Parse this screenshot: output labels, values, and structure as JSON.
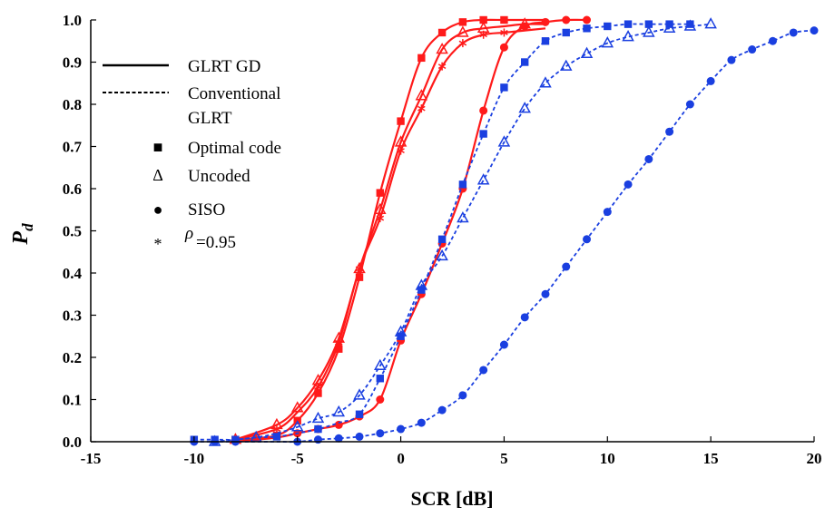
{
  "chart_data": {
    "type": "line",
    "xlabel": "SCR  [dB]",
    "ylabel_main": "P",
    "ylabel_sub": "d",
    "xlim": [
      -15,
      20
    ],
    "ylim": [
      0,
      1.0
    ],
    "xticks": [
      -15,
      -10,
      -5,
      0,
      5,
      10,
      15,
      20
    ],
    "yticks": [
      0.0,
      0.1,
      0.2,
      0.3,
      0.4,
      0.5,
      0.6,
      0.7,
      0.8,
      0.9,
      1.0
    ],
    "xtick_labels": [
      "-15",
      "-10",
      "-5",
      "0",
      "5",
      "10",
      "15",
      "20"
    ],
    "ytick_labels": [
      "0.0",
      "0.1",
      "0.2",
      "0.3",
      "0.4",
      "0.5",
      "0.6",
      "0.7",
      "0.8",
      "0.9",
      "1.0"
    ],
    "grid": false,
    "legend_position": "top-left",
    "colors": {
      "glrt_gd": "#ff1a1a",
      "conventional": "#1a3fe0",
      "axes": "#000000"
    },
    "legend": {
      "lines": [
        {
          "label": "GLRT GD",
          "style": "solid"
        },
        {
          "label": "Conventional",
          "label2": "GLRT",
          "style": "dashed"
        }
      ],
      "markers": [
        {
          "symbol": "■",
          "label": "Optimal code"
        },
        {
          "symbol": "Δ",
          "label": "Uncoded"
        },
        {
          "symbol": "●",
          "label": "SISO"
        },
        {
          "symbol": "*",
          "rho": "ρ",
          "label": "=0.95"
        }
      ]
    },
    "series": [
      {
        "method": "GLRT GD",
        "marker": "square",
        "style": "solid",
        "color": "#ff1a1a",
        "x": [
          -8,
          -6,
          -5,
          -4,
          -3,
          -2,
          -1,
          0,
          1,
          2,
          3,
          4,
          5,
          6,
          7
        ],
        "y": [
          0.005,
          0.015,
          0.05,
          0.115,
          0.22,
          0.39,
          0.59,
          0.76,
          0.91,
          0.97,
          0.995,
          1.0,
          1.0,
          1.0,
          1.0
        ],
        "markers_x": [
          -8,
          -6,
          -5,
          -4,
          -3,
          -2,
          -1,
          0,
          1,
          2,
          3,
          4,
          5
        ],
        "markers_y": [
          0.005,
          0.015,
          0.05,
          0.115,
          0.22,
          0.39,
          0.59,
          0.76,
          0.91,
          0.97,
          0.995,
          1.0,
          1.0
        ]
      },
      {
        "method": "GLRT GD",
        "marker": "triangle",
        "style": "solid",
        "color": "#ff1a1a",
        "x": [
          -8,
          -6,
          -5,
          -4,
          -3,
          -2,
          -1,
          0,
          1,
          2,
          3,
          4,
          5,
          6,
          7
        ],
        "y": [
          0.005,
          0.04,
          0.08,
          0.145,
          0.245,
          0.41,
          0.55,
          0.71,
          0.82,
          0.93,
          0.97,
          0.98,
          0.985,
          0.99,
          0.99
        ],
        "markers_x": [
          -8,
          -6,
          -5,
          -4,
          -3,
          -2,
          -1,
          0,
          1,
          2,
          3,
          4,
          6
        ],
        "markers_y": [
          0.005,
          0.04,
          0.08,
          0.145,
          0.245,
          0.41,
          0.55,
          0.71,
          0.82,
          0.93,
          0.97,
          0.98,
          0.99
        ]
      },
      {
        "method": "GLRT GD",
        "marker": "star",
        "style": "solid",
        "color": "#ff1a1a",
        "x": [
          -8,
          -6,
          -5,
          -4,
          -3,
          -2,
          -1,
          0,
          1,
          2,
          3,
          4,
          5,
          6,
          7
        ],
        "y": [
          0.005,
          0.03,
          0.07,
          0.13,
          0.235,
          0.41,
          0.53,
          0.69,
          0.79,
          0.89,
          0.945,
          0.965,
          0.97,
          0.975,
          0.98
        ],
        "markers_x": [
          -7,
          -6,
          -4,
          -3,
          -2,
          -1,
          0,
          1,
          2,
          3,
          4,
          5
        ],
        "markers_y": [
          0.01,
          0.03,
          0.13,
          0.235,
          0.41,
          0.53,
          0.69,
          0.79,
          0.89,
          0.945,
          0.965,
          0.97
        ]
      },
      {
        "method": "GLRT GD",
        "marker": "circle",
        "style": "solid",
        "color": "#ff1a1a",
        "x": [
          -8,
          -6,
          -5,
          -4,
          -3,
          -2,
          -1,
          0,
          1,
          2,
          3,
          4,
          5,
          6,
          7,
          8,
          9
        ],
        "y": [
          0.0,
          0.01,
          0.02,
          0.03,
          0.04,
          0.06,
          0.1,
          0.24,
          0.35,
          0.47,
          0.6,
          0.785,
          0.935,
          0.985,
          0.995,
          1.0,
          1.0
        ],
        "markers_x": [
          -5,
          -4,
          -3,
          -2,
          -1,
          0,
          1,
          2,
          3,
          4,
          5,
          6,
          7,
          8,
          9
        ],
        "markers_y": [
          0.02,
          0.03,
          0.04,
          0.06,
          0.1,
          0.24,
          0.35,
          0.47,
          0.6,
          0.785,
          0.935,
          0.985,
          0.995,
          1.0,
          1.0
        ]
      },
      {
        "method": "Conventional GLRT",
        "marker": "square",
        "style": "dashed",
        "color": "#1a3fe0",
        "x": [
          -10,
          -9,
          -8,
          -7,
          -6,
          -5,
          -4,
          -3,
          -2,
          -1,
          0,
          1,
          2,
          3,
          4,
          5,
          6,
          7,
          8,
          9,
          10,
          11,
          12,
          13,
          14
        ],
        "y": [
          0.005,
          0.005,
          0.005,
          0.01,
          0.012,
          0.02,
          0.03,
          0.045,
          0.065,
          0.15,
          0.25,
          0.36,
          0.48,
          0.61,
          0.73,
          0.84,
          0.9,
          0.95,
          0.97,
          0.98,
          0.985,
          0.99,
          0.99,
          0.99,
          0.99
        ],
        "markers_x": [
          -10,
          -9,
          -8,
          -6,
          -4,
          -2,
          -1,
          0,
          1,
          2,
          3,
          4,
          5,
          6,
          7,
          8,
          9,
          10,
          11,
          12,
          13,
          14
        ],
        "markers_y": [
          0.005,
          0.005,
          0.005,
          0.012,
          0.03,
          0.065,
          0.15,
          0.25,
          0.36,
          0.48,
          0.61,
          0.73,
          0.84,
          0.9,
          0.95,
          0.97,
          0.98,
          0.985,
          0.99,
          0.99,
          0.99,
          0.99
        ]
      },
      {
        "method": "Conventional GLRT",
        "marker": "triangle",
        "style": "dashed",
        "color": "#1a3fe0",
        "x": [
          -9,
          -8,
          -7,
          -6,
          -5,
          -4,
          -3,
          -2,
          -1,
          0,
          1,
          2,
          3,
          4,
          5,
          6,
          7,
          8,
          9,
          10,
          11,
          12,
          13,
          14,
          15
        ],
        "y": [
          0.0,
          0.005,
          0.01,
          0.02,
          0.035,
          0.055,
          0.07,
          0.11,
          0.18,
          0.26,
          0.37,
          0.44,
          0.53,
          0.62,
          0.71,
          0.79,
          0.85,
          0.89,
          0.92,
          0.945,
          0.96,
          0.97,
          0.98,
          0.985,
          0.99
        ],
        "markers_x": [
          -9,
          -7,
          -5,
          -4,
          -3,
          -2,
          -1,
          0,
          1,
          2,
          3,
          4,
          5,
          6,
          7,
          8,
          9,
          10,
          11,
          12,
          13,
          14,
          15
        ],
        "markers_y": [
          0.0,
          0.01,
          0.035,
          0.055,
          0.07,
          0.11,
          0.18,
          0.26,
          0.37,
          0.44,
          0.53,
          0.62,
          0.71,
          0.79,
          0.85,
          0.89,
          0.92,
          0.945,
          0.96,
          0.97,
          0.98,
          0.985,
          0.99
        ]
      },
      {
        "method": "Conventional GLRT",
        "marker": "circle",
        "style": "dashed",
        "color": "#1a3fe0",
        "x": [
          -10,
          -9,
          -8,
          -7,
          -6,
          -5,
          -4,
          -3,
          -2,
          -1,
          0,
          1,
          2,
          3,
          4,
          5,
          6,
          7,
          8,
          9,
          10,
          11,
          12,
          13,
          14,
          15,
          16,
          17,
          18,
          19,
          20
        ],
        "y": [
          0.0,
          0.0,
          0.0,
          0.0,
          0.0,
          0.0,
          0.005,
          0.008,
          0.012,
          0.02,
          0.03,
          0.045,
          0.075,
          0.11,
          0.17,
          0.23,
          0.295,
          0.35,
          0.415,
          0.48,
          0.545,
          0.61,
          0.67,
          0.735,
          0.8,
          0.855,
          0.905,
          0.93,
          0.95,
          0.97,
          0.975
        ],
        "markers_x": [
          -10,
          -9,
          -8,
          -5,
          -4,
          -3,
          -2,
          -1,
          0,
          1,
          2,
          3,
          4,
          5,
          6,
          7,
          8,
          9,
          10,
          11,
          12,
          13,
          14,
          15,
          16,
          17,
          18,
          19,
          20
        ],
        "markers_y": [
          0.0,
          0.0,
          0.0,
          0.0,
          0.005,
          0.008,
          0.012,
          0.02,
          0.03,
          0.045,
          0.075,
          0.11,
          0.17,
          0.23,
          0.295,
          0.35,
          0.415,
          0.48,
          0.545,
          0.61,
          0.67,
          0.735,
          0.8,
          0.855,
          0.905,
          0.93,
          0.95,
          0.97,
          0.975
        ]
      }
    ]
  }
}
